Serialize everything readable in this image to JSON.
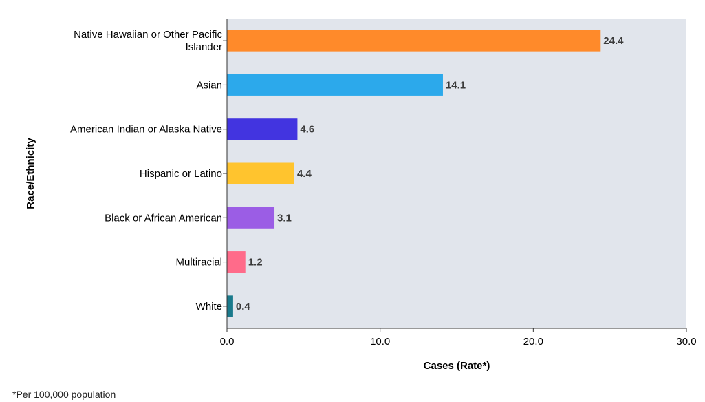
{
  "chart_data": {
    "type": "bar",
    "orientation": "horizontal",
    "title": "",
    "xlabel": "Cases (Rate*)",
    "ylabel": "Race/Ethnicity",
    "xlim": [
      0,
      30
    ],
    "xticks": [
      "0.0",
      "10.0",
      "20.0",
      "30.0"
    ],
    "xtick_values": [
      0,
      10,
      20,
      30
    ],
    "categories": [
      [
        "Native Hawaiian or Other Pacific",
        "Islander"
      ],
      [
        "Asian"
      ],
      [
        "American Indian or Alaska Native"
      ],
      [
        "Hispanic or Latino"
      ],
      [
        "Black or African American"
      ],
      [
        "Multiracial"
      ],
      [
        "White"
      ]
    ],
    "values": [
      24.4,
      14.1,
      4.6,
      4.4,
      3.1,
      1.2,
      0.4
    ],
    "value_labels": [
      "24.4",
      "14.1",
      "4.6",
      "4.4",
      "3.1",
      "1.2",
      "0.4"
    ],
    "colors": [
      "#FF8A2A",
      "#2CA9EB",
      "#4234E0",
      "#FFC42E",
      "#9B5DE5",
      "#FF6B8A",
      "#1A7A8C"
    ],
    "plot_background": "#E1E5EC",
    "grid": false,
    "legend": "none"
  },
  "footnote": "*Per 100,000 population"
}
